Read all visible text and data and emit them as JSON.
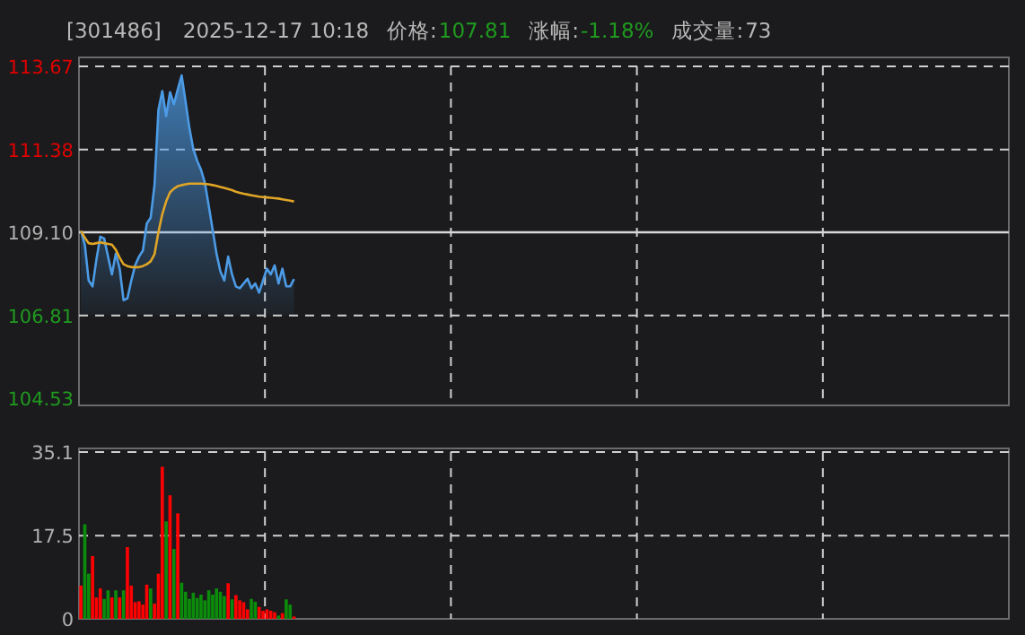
{
  "chart_data": [
    {
      "type": "line",
      "title": "[301486]",
      "subtitle": "2025-12-17 10:18",
      "annotations": [
        "价格:107.81",
        "涨幅:-1.18%",
        "成交量:73"
      ],
      "categories": [
        null,
        null,
        null,
        null,
        null,
        null,
        null,
        null,
        null,
        null,
        null,
        null,
        null,
        null,
        null,
        null,
        null,
        null,
        null,
        null,
        null,
        null,
        null,
        null,
        null,
        null,
        null,
        null,
        null,
        null,
        null,
        null,
        null,
        null,
        null,
        null,
        null,
        null,
        null,
        null,
        null,
        null,
        null,
        null,
        null,
        null,
        null,
        null,
        null,
        null,
        null,
        null,
        null,
        null,
        null,
        null,
        null,
        null,
        null,
        null,
        null,
        null,
        null,
        null,
        null,
        null,
        null,
        null,
        null,
        null,
        null,
        null,
        null,
        null,
        null,
        null,
        null,
        null,
        null,
        null,
        null,
        null,
        null,
        null,
        null,
        null,
        null,
        null,
        null,
        null,
        null,
        null,
        null,
        null,
        null,
        null,
        null,
        null,
        null,
        null,
        null,
        null,
        null,
        null,
        null,
        null,
        null,
        null,
        null,
        null,
        null,
        null,
        null,
        null,
        null,
        null,
        null,
        null,
        null,
        null,
        null,
        null,
        null,
        null,
        null,
        null,
        null,
        null,
        null,
        null,
        null,
        null,
        null,
        null,
        null,
        null,
        null,
        null,
        null,
        null,
        null,
        null,
        null,
        null,
        null,
        null,
        null,
        null,
        null,
        null,
        null,
        null,
        null,
        null,
        null,
        null,
        null,
        null,
        null,
        null,
        null,
        null,
        null,
        null,
        null,
        null,
        null,
        null,
        null,
        null,
        null,
        null,
        null,
        null,
        null,
        null,
        null,
        null,
        null,
        null,
        null,
        null,
        null,
        null,
        null,
        null,
        null,
        null,
        null,
        null,
        null,
        null,
        null,
        null,
        null,
        null,
        null,
        null,
        null,
        null,
        null,
        null,
        null,
        null,
        null,
        null,
        null,
        null,
        null,
        null,
        null,
        null,
        null,
        null,
        null,
        null,
        null,
        null,
        null,
        null,
        null,
        null,
        null,
        null,
        null,
        null,
        null,
        null,
        null,
        null,
        null,
        null,
        null,
        null,
        null,
        null,
        null,
        null,
        null,
        null
      ],
      "series": [
        {
          "type": "area",
          "color": "#4c9be6",
          "values": [
            109.14,
            108.76,
            107.77,
            107.61,
            108.35,
            108.98,
            108.93,
            108.43,
            107.94,
            108.51,
            108.1,
            107.23,
            107.28,
            107.77,
            108.19,
            108.43,
            108.6,
            109.34,
            109.5,
            110.41,
            112.47,
            112.99,
            112.3,
            112.96,
            112.63,
            113.04,
            113.42,
            112.71,
            111.97,
            111.4,
            111.07,
            110.82,
            110.46,
            109.83,
            109.17,
            108.51,
            108.02,
            107.77,
            108.43,
            107.94,
            107.61,
            107.56,
            107.69,
            107.82,
            107.56,
            107.69,
            107.44,
            107.77,
            108.1,
            107.94,
            108.19,
            107.69,
            108.1,
            107.61,
            107.61,
            107.81,
            null,
            null,
            null,
            null,
            null,
            null,
            null,
            null,
            null,
            null,
            null,
            null,
            null,
            null,
            null,
            null,
            null,
            null,
            null,
            null,
            null,
            null,
            null,
            null,
            null,
            null,
            null,
            null,
            null,
            null,
            null,
            null,
            null,
            null,
            null,
            null,
            null,
            null,
            null,
            null,
            null,
            null,
            null,
            null,
            null,
            null,
            null,
            null,
            null,
            null,
            null,
            null,
            null,
            null,
            null,
            null,
            null,
            null,
            null,
            null,
            null,
            null,
            null,
            null,
            null,
            null,
            null,
            null,
            null,
            null,
            null,
            null,
            null,
            null,
            null,
            null,
            null,
            null,
            null,
            null,
            null,
            null,
            null,
            null,
            null,
            null,
            null,
            null,
            null,
            null,
            null,
            null,
            null,
            null,
            null,
            null,
            null,
            null,
            null,
            null,
            null,
            null,
            null,
            null,
            null,
            null,
            null,
            null,
            null,
            null,
            null,
            null,
            null,
            null,
            null,
            null,
            null,
            null,
            null,
            null,
            null,
            null,
            null,
            null,
            null,
            null,
            null,
            null,
            null,
            null,
            null,
            null,
            null,
            null,
            null,
            null,
            null,
            null,
            null,
            null,
            null,
            null,
            null,
            null,
            null,
            null,
            null,
            null,
            null,
            null,
            null,
            null,
            null,
            null,
            null,
            null,
            null,
            null,
            null,
            null,
            null,
            null,
            null,
            null,
            null,
            null,
            null,
            null,
            null,
            null,
            null,
            null,
            null,
            null,
            null,
            null,
            null,
            null,
            null,
            null,
            null,
            null,
            null,
            null
          ]
        },
        {
          "type": "line",
          "color": "#e0a526",
          "values": [
            109.14,
            108.95,
            108.8,
            108.78,
            108.8,
            108.82,
            108.8,
            108.78,
            108.76,
            108.62,
            108.4,
            108.22,
            108.17,
            108.14,
            108.14,
            108.14,
            108.17,
            108.22,
            108.3,
            108.5,
            109.1,
            109.6,
            109.95,
            110.2,
            110.3,
            110.37,
            110.4,
            110.42,
            110.44,
            110.44,
            110.44,
            110.44,
            110.43,
            110.42,
            110.4,
            110.38,
            110.35,
            110.32,
            110.29,
            110.26,
            110.22,
            110.19,
            110.16,
            110.14,
            110.12,
            110.1,
            110.08,
            110.07,
            110.06,
            110.05,
            110.04,
            110.03,
            110.01,
            109.99,
            109.97,
            109.95,
            null,
            null,
            null,
            null,
            null,
            null,
            null,
            null,
            null,
            null,
            null,
            null,
            null,
            null,
            null,
            null,
            null,
            null,
            null,
            null,
            null,
            null,
            null,
            null,
            null,
            null,
            null,
            null,
            null,
            null,
            null,
            null,
            null,
            null,
            null,
            null,
            null,
            null,
            null,
            null,
            null,
            null,
            null,
            null,
            null,
            null,
            null,
            null,
            null,
            null,
            null,
            null,
            null,
            null,
            null,
            null,
            null,
            null,
            null,
            null,
            null,
            null,
            null,
            null,
            null,
            null,
            null,
            null,
            null,
            null,
            null,
            null,
            null,
            null,
            null,
            null,
            null,
            null,
            null,
            null,
            null,
            null,
            null,
            null,
            null,
            null,
            null,
            null,
            null,
            null,
            null,
            null,
            null,
            null,
            null,
            null,
            null,
            null,
            null,
            null,
            null,
            null,
            null,
            null,
            null,
            null,
            null,
            null,
            null,
            null,
            null,
            null,
            null,
            null,
            null,
            null,
            null,
            null,
            null,
            null,
            null,
            null,
            null,
            null,
            null,
            null,
            null,
            null,
            null,
            null,
            null,
            null,
            null,
            null,
            null,
            null,
            null,
            null,
            null,
            null,
            null,
            null,
            null,
            null,
            null,
            null,
            null,
            null,
            null,
            null,
            null,
            null,
            null,
            null,
            null,
            null,
            null,
            null,
            null,
            null,
            null,
            null,
            null,
            null,
            null,
            null,
            null,
            null,
            null,
            null,
            null,
            null,
            null,
            null,
            null,
            null,
            null,
            null,
            null,
            null,
            null,
            null,
            null,
            null
          ]
        }
      ],
      "ylim": [
        104.53,
        113.67
      ],
      "yticks": [
        104.53,
        106.81,
        {
          "value": 109.1,
          "label": "109.10"
        },
        111.38,
        113.67
      ],
      "ref_lines": [
        {
          "axis": "y",
          "value": 109.1,
          "color": "#d8d8d8"
        }
      ],
      "grid": true
    },
    {
      "type": "bar",
      "categories": [
        null,
        null,
        null,
        null,
        null,
        null,
        null,
        null,
        null,
        null,
        null,
        null,
        null,
        null,
        null,
        null,
        null,
        null,
        null,
        null,
        null,
        null,
        null,
        null,
        null,
        null,
        null,
        null,
        null,
        null,
        null,
        null,
        null,
        null,
        null,
        null,
        null,
        null,
        null,
        null,
        null,
        null,
        null,
        null,
        null,
        null,
        null,
        null,
        null,
        null,
        null,
        null,
        null,
        null,
        null,
        null,
        null,
        null,
        null,
        null,
        null,
        null,
        null,
        null,
        null,
        null,
        null,
        null,
        null,
        null,
        null,
        null,
        null,
        null,
        null,
        null,
        null,
        null,
        null,
        null,
        null,
        null,
        null,
        null,
        null,
        null,
        null,
        null,
        null,
        null,
        null,
        null,
        null,
        null,
        null,
        null,
        null,
        null,
        null,
        null,
        null,
        null,
        null,
        null,
        null,
        null,
        null,
        null,
        null,
        null,
        null,
        null,
        null,
        null,
        null,
        null,
        null,
        null,
        null,
        null,
        null,
        null,
        null,
        null,
        null,
        null,
        null,
        null,
        null,
        null,
        null,
        null,
        null,
        null,
        null,
        null,
        null,
        null,
        null,
        null,
        null,
        null,
        null,
        null,
        null,
        null,
        null,
        null,
        null,
        null,
        null,
        null,
        null,
        null,
        null,
        null,
        null,
        null,
        null,
        null,
        null,
        null,
        null,
        null,
        null,
        null,
        null,
        null,
        null,
        null,
        null,
        null,
        null,
        null,
        null,
        null,
        null,
        null,
        null,
        null,
        null,
        null,
        null,
        null,
        null,
        null,
        null,
        null,
        null,
        null,
        null,
        null,
        null,
        null,
        null,
        null,
        null,
        null,
        null,
        null,
        null,
        null,
        null,
        null,
        null,
        null,
        null,
        null,
        null,
        null,
        null,
        null,
        null,
        null,
        null,
        null,
        null,
        null,
        null,
        null,
        null,
        null,
        null,
        null,
        null,
        null,
        null,
        null,
        null,
        null,
        null,
        null,
        null,
        null,
        null,
        null,
        null,
        null,
        null,
        null
      ],
      "values": [
        7.0,
        19.9,
        9.5,
        13.2,
        4.5,
        6.4,
        4.2,
        6.0,
        4.5,
        6.0,
        4.5,
        6.0,
        15.1,
        7.0,
        3.5,
        3.7,
        3.0,
        7.2,
        6.4,
        3.2,
        9.5,
        32.0,
        20.5,
        26.0,
        14.7,
        22.2,
        7.6,
        5.7,
        4.2,
        5.5,
        4.4,
        5.1,
        3.9,
        6.0,
        5.1,
        6.4,
        5.7,
        4.8,
        7.5,
        4.1,
        5.0,
        3.9,
        3.5,
        2.0,
        4.2,
        3.6,
        2.5,
        1.7,
        2.0,
        1.7,
        1.4,
        0.7,
        1.2,
        4.1,
        3.0,
        0.5,
        null,
        null,
        null,
        null,
        null,
        null,
        null,
        null,
        null,
        null,
        null,
        null,
        null,
        null,
        null,
        null,
        null,
        null,
        null,
        null,
        null,
        null,
        null,
        null,
        null,
        null,
        null,
        null,
        null,
        null,
        null,
        null,
        null,
        null,
        null,
        null,
        null,
        null,
        null,
        null,
        null,
        null,
        null,
        null,
        null,
        null,
        null,
        null,
        null,
        null,
        null,
        null,
        null,
        null,
        null,
        null,
        null,
        null,
        null,
        null,
        null,
        null,
        null,
        null,
        null,
        null,
        null,
        null,
        null,
        null,
        null,
        null,
        null,
        null,
        null,
        null,
        null,
        null,
        null,
        null,
        null,
        null,
        null,
        null,
        null,
        null,
        null,
        null,
        null,
        null,
        null,
        null,
        null,
        null,
        null,
        null,
        null,
        null,
        null,
        null,
        null,
        null,
        null,
        null,
        null,
        null,
        null,
        null,
        null,
        null,
        null,
        null,
        null,
        null,
        null,
        null,
        null,
        null,
        null,
        null,
        null,
        null,
        null,
        null,
        null,
        null,
        null,
        null,
        null,
        null,
        null,
        null,
        null,
        null,
        null,
        null,
        null,
        null,
        null,
        null,
        null,
        null,
        null,
        null,
        null,
        null,
        null,
        null,
        null,
        null,
        null,
        null,
        null,
        null,
        null,
        null,
        null,
        null,
        null,
        null,
        null,
        null,
        null,
        null,
        null,
        null,
        null,
        null,
        null,
        null,
        null,
        null,
        null,
        null,
        null,
        null,
        null,
        null,
        null,
        null,
        null,
        null,
        null,
        null
      ],
      "colors": [
        "#ff0000",
        "#0b8c0b",
        "#0b8c0b",
        "#ff0000",
        "#ff0000",
        "#ff0000",
        "#0b8c0b",
        "#0b8c0b",
        "#ff0000",
        "#0b8c0b",
        "#ff0000",
        "#0b8c0b",
        "#ff0000",
        "#ff0000",
        "#ff0000",
        "#ff0000",
        "#ff0000",
        "#ff0000",
        "#0b8c0b",
        "#ff0000",
        "#ff0000",
        "#ff0000",
        "#0b8c0b",
        "#ff0000",
        "#0b8c0b",
        "#ff0000",
        "#0b8c0b",
        "#0b8c0b",
        "#0b8c0b",
        "#0b8c0b",
        "#0b8c0b",
        "#0b8c0b",
        "#0b8c0b",
        "#0b8c0b",
        "#0b8c0b",
        "#0b8c0b",
        "#0b8c0b",
        "#0b8c0b",
        "#ff0000",
        "#0b8c0b",
        "#ff0000",
        "#ff0000",
        "#ff0000",
        "#ff0000",
        "#0b8c0b",
        "#0b8c0b",
        "#ff0000",
        "#ff0000",
        "#ff0000",
        "#ff0000",
        "#ff0000",
        "#0b8c0b",
        "#ff0000",
        "#0b8c0b",
        "#0b8c0b",
        "#ff0000",
        null,
        null,
        null,
        null,
        null,
        null,
        null,
        null,
        null,
        null,
        null,
        null,
        null,
        null,
        null,
        null,
        null,
        null,
        null,
        null,
        null,
        null,
        null,
        null,
        null,
        null,
        null,
        null,
        null,
        null,
        null,
        null,
        null,
        null,
        null,
        null,
        null,
        null,
        null,
        null,
        null,
        null,
        null,
        null,
        null,
        null,
        null,
        null,
        null,
        null,
        null,
        null,
        null,
        null,
        null,
        null,
        null,
        null,
        null,
        null,
        null,
        null,
        null,
        null,
        null,
        null,
        null,
        null,
        null,
        null,
        null,
        null,
        null,
        null,
        null,
        null,
        null,
        null,
        null,
        null,
        null,
        null,
        null,
        null,
        null,
        null,
        null,
        null,
        null,
        null,
        null,
        null,
        null,
        null,
        null,
        null,
        null,
        null,
        null,
        null,
        null,
        null,
        null,
        null,
        null,
        null,
        null,
        null,
        null,
        null,
        null,
        null,
        null,
        null,
        null,
        null,
        null,
        null,
        null,
        null,
        null,
        null,
        null,
        null,
        null,
        null,
        null,
        null,
        null,
        null,
        null,
        null,
        null,
        null,
        null,
        null,
        null,
        null,
        null,
        null,
        null,
        null,
        null,
        null,
        null,
        null,
        null,
        null,
        null,
        null,
        null,
        null,
        null,
        null,
        null,
        null,
        null,
        null,
        null,
        null,
        null,
        null,
        null,
        null,
        null,
        null,
        null,
        null,
        null,
        null,
        null,
        null,
        null,
        null,
        null,
        null,
        null,
        null,
        null,
        null,
        null,
        null,
        null,
        null
      ],
      "ylim": [
        0,
        35.1
      ],
      "yticks": [
        0,
        17.5,
        35.1
      ],
      "grid": true
    }
  ]
}
